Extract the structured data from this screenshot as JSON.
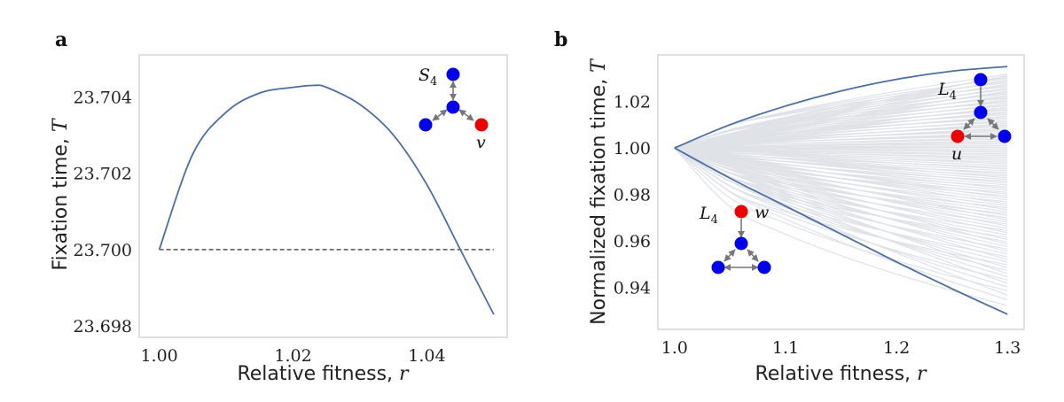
{
  "chart_data": [
    {
      "panel": "a",
      "type": "line",
      "xlabel_text": "Relative fitness, ",
      "xlabel_var": "r",
      "ylabel_text": "Fixation time, ",
      "ylabel_var": "T",
      "xlim": [
        0.997,
        1.052
      ],
      "ylim": [
        23.6977,
        23.7051
      ],
      "xticks": [
        1.0,
        1.02,
        1.04
      ],
      "xtick_labels": [
        "1.00",
        "1.02",
        "1.04"
      ],
      "yticks": [
        23.698,
        23.7,
        23.702,
        23.704
      ],
      "ytick_labels": [
        "23.698",
        "23.700",
        "23.702",
        "23.704"
      ],
      "grid": false,
      "series": [
        {
          "name": "fixation time",
          "color": "#4a6fa5",
          "x": [
            1.0,
            1.005,
            1.01,
            1.015,
            1.02,
            1.023,
            1.025,
            1.03,
            1.035,
            1.04,
            1.045,
            1.05
          ],
          "y": [
            23.7,
            23.7025,
            23.7036,
            23.7041,
            23.70425,
            23.7043,
            23.70425,
            23.7038,
            23.703,
            23.7017,
            23.7,
            23.6983
          ]
        }
      ],
      "reference_line": {
        "y": 23.7,
        "x": [
          1.0,
          1.05
        ],
        "style": "dashed",
        "color": "#333333"
      },
      "graph_inset": {
        "label": "S",
        "label_sub": "4",
        "node_label": "v",
        "node_colors": {
          "blue": "#0000ee",
          "red": "#ee0000"
        }
      }
    },
    {
      "panel": "b",
      "type": "line",
      "xlabel_text": "Relative fitness, ",
      "xlabel_var": "r",
      "ylabel_text": "Normalized fixation time, ",
      "ylabel_var": "T",
      "xlim": [
        0.985,
        1.315
      ],
      "ylim": [
        0.922,
        1.04
      ],
      "xticks": [
        1.0,
        1.1,
        1.2,
        1.3
      ],
      "xtick_labels": [
        "1.0",
        "1.1",
        "1.2",
        "1.3"
      ],
      "yticks": [
        0.94,
        0.96,
        0.98,
        1.0,
        1.02
      ],
      "ytick_labels": [
        "0.94",
        "0.96",
        "0.98",
        "1.00",
        "1.02"
      ],
      "grid": false,
      "series": [
        {
          "name": "upper envelope",
          "color": "#4a6fa5",
          "x": [
            1.0,
            1.05,
            1.1,
            1.15,
            1.2,
            1.25,
            1.3
          ],
          "y": [
            1.0,
            1.01,
            1.018,
            1.0245,
            1.0295,
            1.033,
            1.035
          ]
        },
        {
          "name": "lower envelope",
          "color": "#4a6fa5",
          "x": [
            1.0,
            1.05,
            1.1,
            1.15,
            1.2,
            1.25,
            1.3
          ],
          "y": [
            1.0,
            0.987,
            0.975,
            0.963,
            0.951,
            0.9395,
            0.9285
          ]
        }
      ],
      "background_curves": {
        "color": "#dfe2e7",
        "count": 120,
        "endpoint_range": [
          0.93,
          1.032
        ]
      },
      "graph_insets": [
        {
          "label": "L",
          "label_sub": "4",
          "node_label": "u"
        },
        {
          "label": "L",
          "label_sub": "4",
          "node_label": "w"
        }
      ]
    }
  ]
}
